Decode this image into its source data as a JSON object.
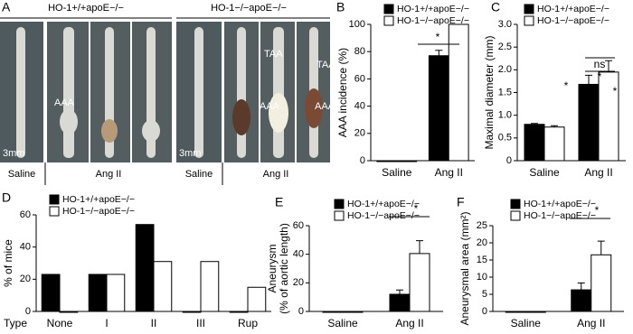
{
  "panel_a": {
    "panel_label": "A",
    "groups": [
      "HO-1+/+apoE−/−",
      "HO-1−/−apoE−/−"
    ],
    "conditions": [
      "Saline",
      "Ang II",
      "Saline",
      "Ang II"
    ],
    "arrow_labels": [
      "AAA",
      "AAA",
      "TAA",
      "TAA",
      "AAA"
    ],
    "scale_bars": [
      "3mm",
      "3mm"
    ]
  },
  "chart_data": [
    {
      "type": "bar",
      "panel_label": "B",
      "y_label": "AAA incidence (%)",
      "categories": [
        "Saline",
        "Ang II"
      ],
      "series": [
        {
          "name": "HO-1+/+apoE−/−",
          "color": "#000000",
          "values": [
            0,
            77
          ],
          "errors": [
            0,
            4
          ]
        },
        {
          "name": "HO-1−/−apoE−/−",
          "color": "#ffffff",
          "values": [
            0,
            100
          ],
          "errors": [
            0,
            0
          ]
        }
      ],
      "ylim": [
        0,
        100
      ],
      "yticks": [
        0,
        20,
        40,
        60,
        80,
        100
      ],
      "legend": "top-left",
      "annotations": [
        "*"
      ]
    },
    {
      "type": "bar",
      "panel_label": "C",
      "y_label": "Maximal diameter (mm)",
      "categories": [
        "Saline",
        "Ang II"
      ],
      "series": [
        {
          "name": "HO-1+/+apoE−/−",
          "color": "#000000",
          "values": [
            0.8,
            1.68
          ],
          "errors": [
            0.02,
            0.2
          ]
        },
        {
          "name": "HO-1−/−apoE−/−",
          "color": "#ffffff",
          "values": [
            0.74,
            1.95
          ],
          "errors": [
            0.03,
            0.25
          ]
        }
      ],
      "ylim": [
        0,
        3
      ],
      "yticks": [
        0,
        0.5,
        {
          "value": 1,
          "label": "1.0"
        },
        1.5,
        {
          "value": 2,
          "label": "2.0"
        },
        2.5,
        {
          "value": 3,
          "label": "3.0"
        }
      ],
      "legend": "top-left",
      "annotations": [
        "ns",
        "*",
        "*",
        "*"
      ]
    },
    {
      "type": "bar",
      "panel_label": "D",
      "y_label": "% of mice",
      "x_label": "Type",
      "categories": [
        "None",
        "I",
        "II",
        "III",
        "Rup"
      ],
      "series": [
        {
          "name": "HO-1+/+apoE−/−",
          "color": "#000000",
          "values": [
            23,
            23,
            54,
            0,
            0
          ]
        },
        {
          "name": "HO-1−/−apoE−/−",
          "color": "#ffffff",
          "values": [
            0,
            23,
            31,
            31,
            15
          ]
        }
      ],
      "ylim": [
        0,
        60
      ],
      "yticks": [
        0,
        20,
        40,
        60
      ],
      "legend": "top-left",
      "annotations": []
    },
    {
      "type": "bar",
      "panel_label": "E",
      "y_label": "Aneurysm",
      "y_label_2": "(% of aortic length)",
      "categories": [
        "Saline",
        "Ang II"
      ],
      "series": [
        {
          "name": "HO-1+/+apoE−/−",
          "color": "#000000",
          "values": [
            0,
            12
          ],
          "errors": [
            0,
            3
          ]
        },
        {
          "name": "HO-1−/−apoE−/−",
          "color": "#ffffff",
          "values": [
            0,
            40.5
          ],
          "errors": [
            0,
            9
          ]
        }
      ],
      "ylim": [
        0,
        60
      ],
      "yticks": [
        0,
        20,
        40,
        60
      ],
      "legend": "top-left",
      "annotations": [
        "*"
      ]
    },
    {
      "type": "bar",
      "panel_label": "F",
      "y_label": "Aneurysmal area (mm²)",
      "categories": [
        "Saline",
        "Ang II"
      ],
      "series": [
        {
          "name": "HO-1+/+apoE−/−",
          "color": "#000000",
          "values": [
            0,
            6.3
          ],
          "errors": [
            0,
            2
          ]
        },
        {
          "name": "HO-1−/−apoE−/−",
          "color": "#ffffff",
          "values": [
            0,
            16.5
          ],
          "errors": [
            0,
            4
          ]
        }
      ],
      "ylim": [
        0,
        25
      ],
      "yticks": [
        0,
        5,
        10,
        15,
        20,
        25
      ],
      "legend": "top-left",
      "annotations": [
        "*"
      ]
    }
  ]
}
